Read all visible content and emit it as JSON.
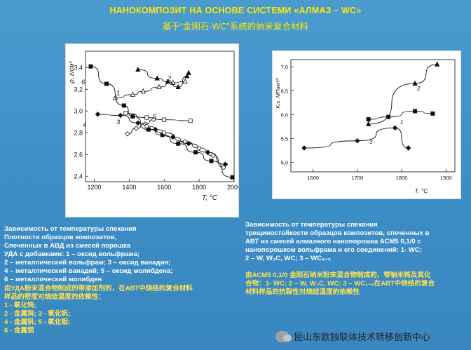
{
  "header": {
    "title": "НАНОКОМПОЗИТ НА ОСНОВЕ СИСТЕМИ «АЛМАЗ – WC»",
    "subtitle": "基于“金刚石-WC”系统的纳米复合材料"
  },
  "chart_data": [
    {
      "type": "line",
      "ylabel": "ρ, г/см³",
      "xlabel": "T, °C",
      "xlim": [
        1150,
        2000
      ],
      "ylim": [
        2.35,
        3.55
      ],
      "xticks": [
        1200,
        1400,
        1600,
        1800,
        2000
      ],
      "yticks": [
        "2,4",
        "2,6",
        "2,8",
        "3,0",
        "3,2",
        "3,4"
      ],
      "curve_labels": [
        "1",
        "2",
        "3",
        "4",
        "5",
        "6"
      ],
      "series": [
        {
          "curve": "1",
          "marker": "open-triangle",
          "points": [
            [
              1320,
              3.12
            ],
            [
              1420,
              3.15
            ],
            [
              1480,
              3.18
            ],
            [
              1570,
              3.22
            ],
            [
              1650,
              3.26
            ],
            [
              1720,
              3.27
            ]
          ]
        },
        {
          "curve": "2",
          "marker": "filled-triangle",
          "points": [
            [
              1450,
              3.38
            ],
            [
              1560,
              3.3
            ],
            [
              1620,
              3.27
            ],
            [
              1680,
              3.22
            ],
            [
              1730,
              3.32
            ],
            [
              1740,
              3.35
            ]
          ]
        },
        {
          "curve": "3",
          "marker": "open-diamond",
          "points": [
            [
              1390,
              2.79
            ],
            [
              1440,
              2.84
            ],
            [
              1490,
              2.88
            ],
            [
              1540,
              2.92
            ]
          ]
        },
        {
          "curve": "4",
          "marker": "filled-diamond",
          "points": [
            [
              1220,
              2.97
            ],
            [
              1350,
              2.96
            ],
            [
              1450,
              2.89
            ],
            [
              1550,
              2.83
            ],
            [
              1650,
              2.76
            ],
            [
              1740,
              2.7
            ],
            [
              1850,
              2.62
            ],
            [
              1950,
              2.51
            ]
          ]
        },
        {
          "curve": "5",
          "marker": "open-square",
          "points": [
            [
              1380,
              2.98
            ],
            [
              1500,
              2.94
            ],
            [
              1600,
              2.92
            ],
            [
              1750,
              2.91
            ]
          ]
        },
        {
          "curve": "6",
          "marker": "filled-square",
          "points": [
            [
              1180,
              3.41
            ],
            [
              1270,
              3.25
            ],
            [
              1370,
              3.05
            ],
            [
              1420,
              2.95
            ],
            [
              1510,
              2.83
            ],
            [
              1590,
              2.78
            ],
            [
              1680,
              2.7
            ],
            [
              1780,
              2.62
            ],
            [
              1870,
              2.54
            ],
            [
              1990,
              2.39
            ]
          ]
        },
        {
          "curve": "6b",
          "marker": "open-circle",
          "points": [
            [
              1500,
              2.86
            ],
            [
              1600,
              2.8
            ],
            [
              1720,
              2.72
            ],
            [
              1800,
              2.66
            ],
            [
              1880,
              2.59
            ],
            [
              1940,
              2.48
            ]
          ]
        }
      ]
    },
    {
      "type": "line",
      "ylabel": "K₁c, МПам¹/²",
      "xlabel": "T, °C",
      "xlim": [
        1550,
        1920
      ],
      "ylim": [
        4.8,
        7.15
      ],
      "xticks": [
        1600,
        1700,
        1800,
        1900
      ],
      "yticks": [
        "5,0",
        "5,5",
        "6,0",
        "6,5",
        "7,0"
      ],
      "curve_labels": [
        "1",
        "2",
        "3"
      ],
      "series": [
        {
          "curve": "1",
          "marker": "filled-square",
          "points": [
            [
              1725,
              5.9
            ],
            [
              1770,
              5.95
            ],
            [
              1830,
              6.07
            ],
            [
              1870,
              6.02
            ]
          ]
        },
        {
          "curve": "2",
          "marker": "filled-triangle",
          "points": [
            [
              1725,
              5.8
            ],
            [
              1830,
              6.65
            ],
            [
              1880,
              7.05
            ]
          ]
        },
        {
          "curve": "3",
          "marker": "filled-diamond",
          "points": [
            [
              1580,
              5.3
            ],
            [
              1700,
              5.45
            ],
            [
              1785,
              5.72
            ],
            [
              1815,
              5.3
            ]
          ]
        }
      ]
    }
  ],
  "captions": {
    "left": {
      "ru_lines": [
        "Зависимость от температуры спекания",
        "Плотности образцов композитов,",
        "Спеченных в АВД из смесей порошка",
        "УДА с добавками: 1 – оксид вольфрама;",
        "2 – металлический вольфрам; 3 – оксид ванадия;",
        "4 – металлический ванадий; 5 – оксид молибдена;",
        "6 – металлический молибден"
      ],
      "zh_lines": [
        "由УДА粉末混合物制成的带添加剂的，在АВТ中烧结的复合材料",
        "样品的密度对烧结温度的依赖性：",
        "1 - 氧化钨;",
        "2 - 金属钨; 3 - 氧化钒;",
        "4 - 金属钒; 5 - 氧化钼;",
        "6 - 金属钼"
      ]
    },
    "right": {
      "ru_lines": [
        "Зависимость от температуры спекания",
        "трещиностойкости образцов композитов, спеченных в",
        "АВТ из смесей алмазного нанопорошка АСМ5 0,1/0 с",
        "нанопорошком вольфрама и его соединений: 1- WC;",
        "2 – W, W₂C, WC; 3 – WC₁₋ₓ"
      ],
      "zh_lines": [
        "由АСМ5 0,1/0 金刚石纳米粉末混合物制成的，带钠米钨及其化",
        "合物：1- WC; 2 – W, W₂C, WC; 3 – WC₁₋ₓ在АВТ中烧结的复合",
        "材料样品的抗裂性对烧结温度的依赖性"
      ]
    }
  },
  "watermark": {
    "text": "昆山东欧独联体技术转移创新中心",
    "icon": "wechat-icon"
  },
  "colors": {
    "background": "#3f8fc6",
    "title": "#ffe600",
    "caption": "#ffffff",
    "caption_zh": "#ffe34d"
  }
}
